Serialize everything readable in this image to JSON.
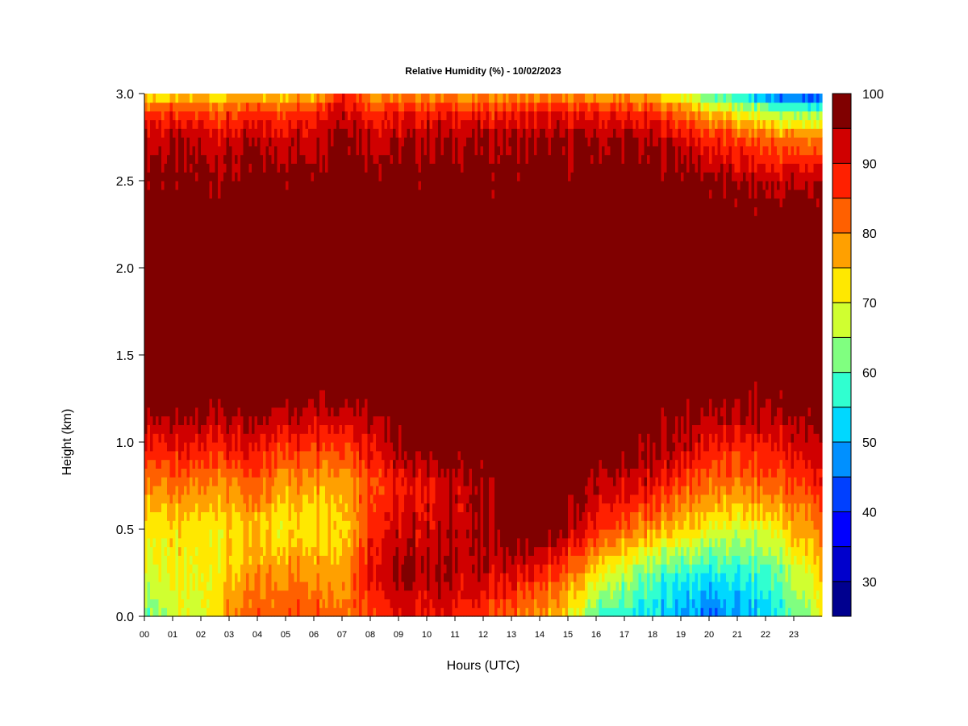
{
  "chart_data": {
    "type": "heatmap",
    "title": "Relative Humidity (%) - 10/02/2023",
    "xlabel": "Hours (UTC)",
    "ylabel": "Height (km)",
    "xlim": [
      0,
      24
    ],
    "ylim": [
      0.0,
      3.0
    ],
    "x_ticks": [
      "00",
      "01",
      "02",
      "03",
      "04",
      "05",
      "06",
      "07",
      "08",
      "09",
      "10",
      "11",
      "12",
      "13",
      "14",
      "15",
      "16",
      "17",
      "18",
      "19",
      "20",
      "21",
      "22",
      "23"
    ],
    "y_ticks": [
      "0.0",
      "0.5",
      "1.0",
      "1.5",
      "2.0",
      "2.5",
      "3.0"
    ],
    "colorbar": {
      "levels": [
        25,
        30,
        35,
        40,
        45,
        50,
        55,
        60,
        65,
        70,
        75,
        80,
        85,
        90,
        95,
        100
      ],
      "tick_labels": [
        "30",
        "40",
        "50",
        "60",
        "70",
        "80",
        "90",
        "100"
      ],
      "colors": [
        "#00008f",
        "#0000cc",
        "#0000ff",
        "#0040ff",
        "#0090ff",
        "#00d8ff",
        "#30ffd0",
        "#80ff80",
        "#d0ff30",
        "#ffe800",
        "#ffa000",
        "#ff6000",
        "#ff2000",
        "#d00000",
        "#800000"
      ]
    },
    "profiles": [
      {
        "hour": 0,
        "rh": [
          62,
          68,
          72,
          80,
          90,
          99,
          100,
          100,
          100,
          100,
          98,
          95,
          85,
          72
        ]
      },
      {
        "hour": 1,
        "rh": [
          66,
          70,
          72,
          80,
          90,
          99,
          100,
          100,
          100,
          100,
          97,
          93,
          85,
          72
        ]
      },
      {
        "hour": 2,
        "rh": [
          68,
          70,
          72,
          80,
          90,
          99,
          100,
          100,
          100,
          100,
          97,
          93,
          85,
          73
        ]
      },
      {
        "hour": 3,
        "rh": [
          80,
          75,
          73,
          80,
          90,
          99,
          100,
          100,
          100,
          100,
          97,
          92,
          85,
          73
        ]
      },
      {
        "hour": 4,
        "rh": [
          82,
          78,
          73,
          82,
          90,
          99,
          100,
          100,
          100,
          100,
          98,
          93,
          86,
          74
        ]
      },
      {
        "hour": 5,
        "rh": [
          85,
          80,
          72,
          78,
          88,
          99,
          100,
          100,
          100,
          100,
          98,
          93,
          86,
          74
        ]
      },
      {
        "hour": 6,
        "rh": [
          85,
          80,
          74,
          78,
          88,
          98,
          100,
          100,
          100,
          100,
          98,
          94,
          87,
          75
        ]
      },
      {
        "hour": 7,
        "rh": [
          82,
          78,
          74,
          78,
          88,
          98,
          100,
          100,
          100,
          100,
          100,
          98,
          95,
          90
        ]
      },
      {
        "hour": 8,
        "rh": [
          86,
          92,
          88,
          85,
          92,
          99,
          100,
          100,
          100,
          100,
          99,
          95,
          88,
          78
        ]
      },
      {
        "hour": 9,
        "rh": [
          90,
          95,
          92,
          88,
          96,
          100,
          100,
          100,
          100,
          100,
          98,
          94,
          88,
          78
        ]
      },
      {
        "hour": 10,
        "rh": [
          90,
          95,
          93,
          90,
          100,
          100,
          100,
          100,
          100,
          100,
          99,
          95,
          88,
          78
        ]
      },
      {
        "hour": 11,
        "rh": [
          90,
          95,
          94,
          93,
          100,
          100,
          100,
          100,
          100,
          100,
          99,
          95,
          88,
          78
        ]
      },
      {
        "hour": 12,
        "rh": [
          85,
          93,
          95,
          95,
          100,
          100,
          100,
          100,
          100,
          100,
          99,
          95,
          88,
          78
        ]
      },
      {
        "hour": 13,
        "rh": [
          82,
          92,
          100,
          100,
          100,
          100,
          100,
          100,
          100,
          100,
          99,
          95,
          88,
          78
        ]
      },
      {
        "hour": 14,
        "rh": [
          78,
          88,
          100,
          100,
          100,
          100,
          100,
          100,
          100,
          100,
          99,
          95,
          88,
          78
        ]
      },
      {
        "hour": 15,
        "rh": [
          72,
          82,
          95,
          100,
          100,
          100,
          100,
          100,
          100,
          100,
          99,
          95,
          88,
          78
        ]
      },
      {
        "hour": 16,
        "rh": [
          60,
          72,
          88,
          95,
          100,
          100,
          100,
          100,
          100,
          100,
          99,
          95,
          88,
          77
        ]
      },
      {
        "hour": 17,
        "rh": [
          56,
          66,
          82,
          92,
          98,
          100,
          100,
          100,
          100,
          100,
          99,
          95,
          87,
          76
        ]
      },
      {
        "hour": 18,
        "rh": [
          52,
          60,
          78,
          90,
          96,
          100,
          100,
          100,
          100,
          100,
          99,
          94,
          85,
          73
        ]
      },
      {
        "hour": 19,
        "rh": [
          50,
          58,
          75,
          85,
          95,
          99,
          100,
          100,
          100,
          100,
          98,
          92,
          82,
          68
        ]
      },
      {
        "hour": 20,
        "rh": [
          45,
          55,
          70,
          82,
          90,
          98,
          100,
          100,
          100,
          100,
          97,
          88,
          75,
          58
        ]
      },
      {
        "hour": 21,
        "rh": [
          48,
          55,
          68,
          80,
          88,
          96,
          100,
          100,
          100,
          100,
          95,
          85,
          70,
          52
        ]
      },
      {
        "hour": 22,
        "rh": [
          52,
          58,
          70,
          82,
          90,
          97,
          100,
          100,
          100,
          100,
          94,
          82,
          65,
          45
        ]
      },
      {
        "hour": 23,
        "rh": [
          60,
          65,
          75,
          85,
          92,
          98,
          100,
          100,
          100,
          100,
          94,
          80,
          62,
          40
        ]
      },
      {
        "hour": 24,
        "rh": [
          70,
          75,
          80,
          88,
          94,
          99,
          100,
          100,
          100,
          100,
          94,
          80,
          62,
          38
        ]
      }
    ],
    "profile_heights_km": [
      0.0,
      0.25,
      0.5,
      0.75,
      1.0,
      1.25,
      1.5,
      1.75,
      2.0,
      2.25,
      2.5,
      2.75,
      2.9,
      3.0
    ]
  }
}
